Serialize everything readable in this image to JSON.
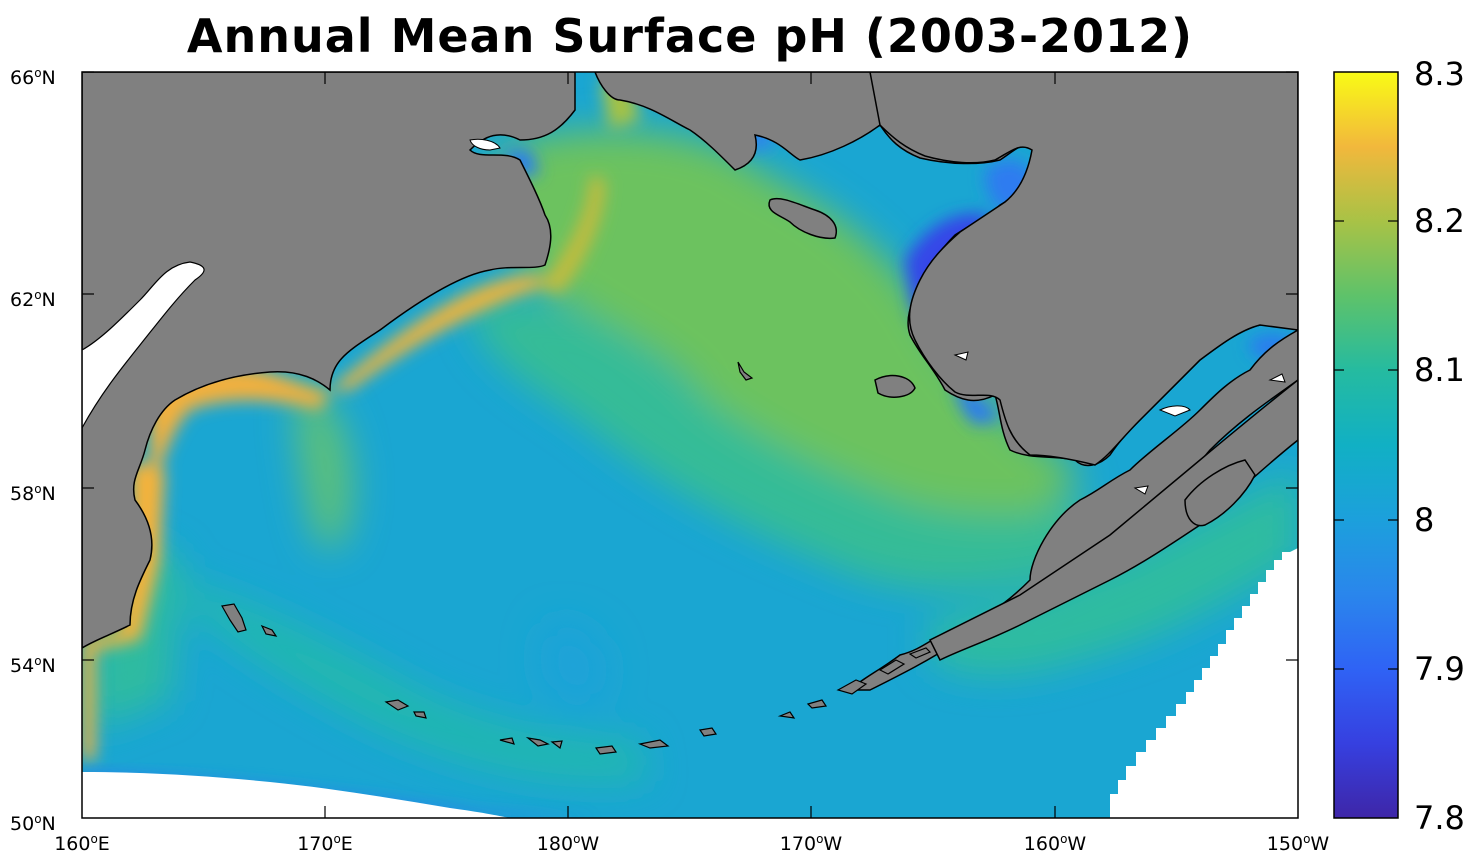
{
  "title": "Annual Mean Surface pH (2003-2012)",
  "latitude_labels": [
    {
      "deg": "66",
      "hemi": "N"
    },
    {
      "deg": "62",
      "hemi": "N"
    },
    {
      "deg": "58",
      "hemi": "N"
    },
    {
      "deg": "54",
      "hemi": "N"
    },
    {
      "deg": "50",
      "hemi": "N"
    }
  ],
  "longitude_labels": [
    {
      "deg": "160",
      "hemi": "E"
    },
    {
      "deg": "170",
      "hemi": "E"
    },
    {
      "deg": "180",
      "hemi": "W"
    },
    {
      "deg": "170",
      "hemi": "W"
    },
    {
      "deg": "160",
      "hemi": "W"
    },
    {
      "deg": "150",
      "hemi": "W"
    }
  ],
  "colorbar": {
    "min": 7.8,
    "max": 8.3,
    "tick_labels": [
      "8.3",
      "8.2",
      "8.1",
      "8",
      "7.9",
      "7.8"
    ],
    "colormap": [
      "#3e26a8",
      "#2f4bf5",
      "#2a7ef0",
      "#17a0d8",
      "#12b6b4",
      "#3dc07e",
      "#7dc452",
      "#c2ba3a",
      "#f7ba3d",
      "#f9fb15"
    ]
  },
  "colors": {
    "land": "#808080",
    "no_data": "#ffffff",
    "coastline": "#000000"
  }
}
